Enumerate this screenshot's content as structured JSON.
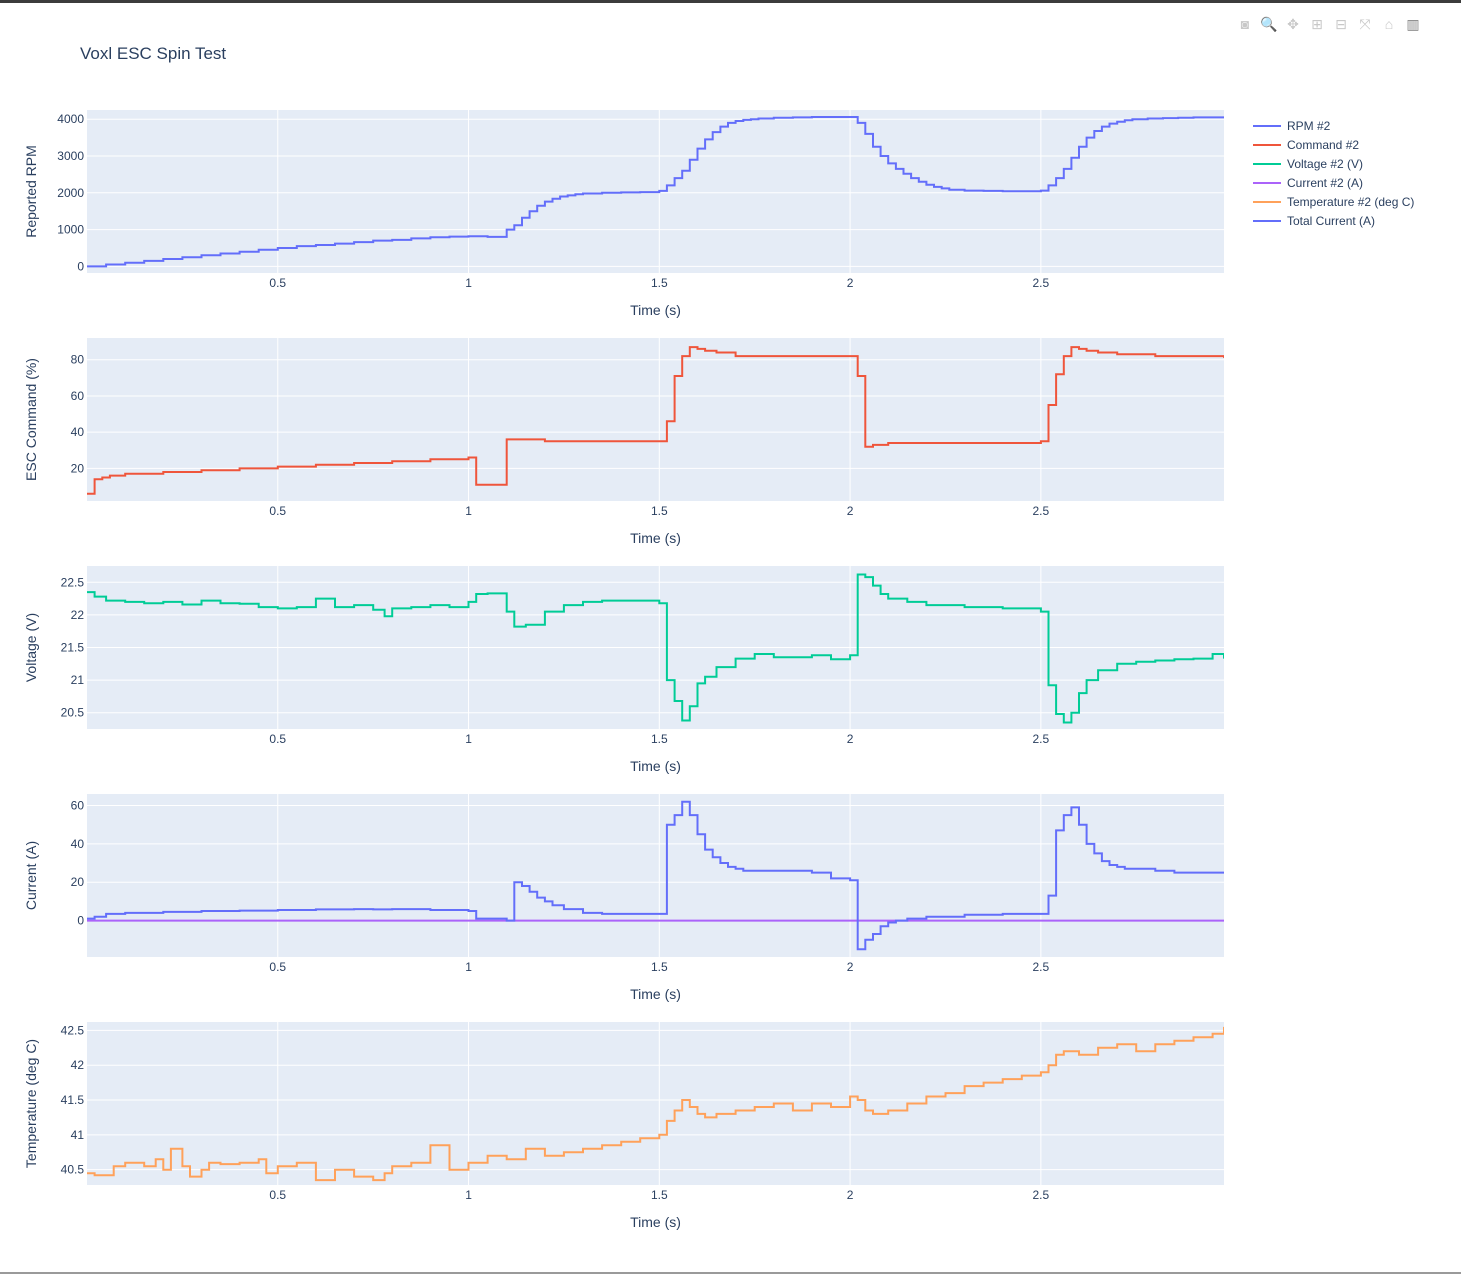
{
  "title": "Voxl ESC Spin Test",
  "modebar": [
    {
      "name": "camera-icon",
      "glyph": "◙"
    },
    {
      "name": "zoom-icon",
      "glyph": "🔍"
    },
    {
      "name": "pan-icon",
      "glyph": "✥"
    },
    {
      "name": "zoom-in-icon",
      "glyph": "⊞"
    },
    {
      "name": "zoom-out-icon",
      "glyph": "⊟"
    },
    {
      "name": "autoscale-icon",
      "glyph": "⤧"
    },
    {
      "name": "home-icon",
      "glyph": "⌂"
    },
    {
      "name": "plotly-logo-icon",
      "glyph": "▥"
    }
  ],
  "colors": {
    "plot_bg": "#e5ecf6",
    "grid": "#ffffff",
    "rpm": "#636efa",
    "command": "#EF553B",
    "voltage": "#00cc96",
    "current": "#ab63fa",
    "temperature": "#FFA15A",
    "total_current": "#636efa"
  },
  "legend": [
    {
      "label": "RPM #2",
      "color": "#636efa"
    },
    {
      "label": "Command #2",
      "color": "#EF553B"
    },
    {
      "label": "Voltage #2 (V)",
      "color": "#00cc96"
    },
    {
      "label": "Current #2 (A)",
      "color": "#ab63fa"
    },
    {
      "label": "Temperature #2 (deg C)",
      "color": "#FFA15A"
    },
    {
      "label": "Total Current (A)",
      "color": "#636efa"
    }
  ],
  "chart_data": [
    {
      "type": "line",
      "line_shape": "step",
      "xlabel": "Time (s)",
      "ylabel": "Reported RPM",
      "xlim": [
        0.0,
        2.98
      ],
      "ylim": [
        -180,
        4250
      ],
      "xticks": [
        0.5,
        1,
        1.5,
        2,
        2.5
      ],
      "xtick_labels": [
        "0.5",
        "1",
        "1.5",
        "2",
        "2.5"
      ],
      "yticks": [
        0,
        1000,
        2000,
        3000,
        4000
      ],
      "ytick_labels": [
        "0",
        "1000",
        "2000",
        "3000",
        "4000"
      ],
      "series": [
        {
          "name": "RPM #2",
          "color": "#636efa",
          "x": [
            0.0,
            0.05,
            0.1,
            0.15,
            0.2,
            0.25,
            0.3,
            0.35,
            0.4,
            0.45,
            0.5,
            0.55,
            0.6,
            0.65,
            0.7,
            0.75,
            0.8,
            0.85,
            0.9,
            0.95,
            1.0,
            1.05,
            1.1,
            1.12,
            1.14,
            1.16,
            1.18,
            1.2,
            1.22,
            1.24,
            1.26,
            1.28,
            1.3,
            1.35,
            1.4,
            1.45,
            1.5,
            1.52,
            1.54,
            1.56,
            1.58,
            1.6,
            1.62,
            1.64,
            1.66,
            1.68,
            1.7,
            1.72,
            1.74,
            1.76,
            1.8,
            1.85,
            1.9,
            1.95,
            2.0,
            2.02,
            2.04,
            2.06,
            2.08,
            2.1,
            2.12,
            2.14,
            2.16,
            2.18,
            2.2,
            2.22,
            2.24,
            2.26,
            2.3,
            2.35,
            2.4,
            2.45,
            2.5,
            2.52,
            2.54,
            2.56,
            2.58,
            2.6,
            2.62,
            2.64,
            2.66,
            2.68,
            2.7,
            2.72,
            2.74,
            2.78,
            2.82,
            2.86,
            2.9,
            2.95,
            2.98
          ],
          "y": [
            0,
            50,
            100,
            150,
            200,
            250,
            300,
            350,
            400,
            450,
            500,
            550,
            580,
            620,
            660,
            700,
            720,
            760,
            790,
            810,
            820,
            800,
            1000,
            1120,
            1320,
            1500,
            1650,
            1760,
            1840,
            1900,
            1930,
            1960,
            1980,
            2000,
            2010,
            2020,
            2050,
            2200,
            2400,
            2600,
            2900,
            3200,
            3450,
            3650,
            3800,
            3900,
            3950,
            3980,
            4000,
            4020,
            4040,
            4050,
            4060,
            4060,
            4060,
            3900,
            3600,
            3250,
            3000,
            2800,
            2650,
            2520,
            2400,
            2300,
            2220,
            2160,
            2120,
            2080,
            2060,
            2050,
            2040,
            2040,
            2060,
            2200,
            2400,
            2650,
            2950,
            3250,
            3500,
            3680,
            3800,
            3880,
            3930,
            3970,
            4000,
            4020,
            4030,
            4040,
            4050,
            4050,
            4050
          ]
        }
      ]
    },
    {
      "type": "line",
      "line_shape": "step",
      "xlabel": "Time (s)",
      "ylabel": "ESC Command (%)",
      "xlim": [
        0.0,
        2.98
      ],
      "ylim": [
        2,
        92
      ],
      "xticks": [
        0.5,
        1,
        1.5,
        2,
        2.5
      ],
      "xtick_labels": [
        "0.5",
        "1",
        "1.5",
        "2",
        "2.5"
      ],
      "yticks": [
        20,
        40,
        60,
        80
      ],
      "ytick_labels": [
        "20",
        "40",
        "60",
        "80"
      ],
      "series": [
        {
          "name": "Command #2",
          "color": "#EF553B",
          "x": [
            0.0,
            0.02,
            0.04,
            0.06,
            0.1,
            0.2,
            0.3,
            0.4,
            0.5,
            0.6,
            0.7,
            0.8,
            0.9,
            1.0,
            1.02,
            1.1,
            1.2,
            1.5,
            1.52,
            1.54,
            1.56,
            1.58,
            1.6,
            1.62,
            1.65,
            1.7,
            1.8,
            1.9,
            2.0,
            2.02,
            2.04,
            2.06,
            2.1,
            2.3,
            2.5,
            2.52,
            2.54,
            2.56,
            2.58,
            2.6,
            2.62,
            2.65,
            2.7,
            2.8,
            2.9,
            2.98
          ],
          "y": [
            6,
            14,
            15,
            16,
            17,
            18,
            19,
            20,
            21,
            22,
            23,
            24,
            25,
            26,
            11,
            36,
            35,
            35,
            46,
            71,
            82,
            87,
            86,
            85,
            84,
            82,
            82,
            82,
            82,
            71,
            32,
            33,
            34,
            34,
            35,
            55,
            72,
            82,
            87,
            86,
            85,
            84,
            83,
            82,
            82,
            81
          ]
        }
      ]
    },
    {
      "type": "line",
      "line_shape": "step",
      "xlabel": "Time (s)",
      "ylabel": "Voltage (V)",
      "xlim": [
        0.0,
        2.98
      ],
      "ylim": [
        20.25,
        22.75
      ],
      "xticks": [
        0.5,
        1,
        1.5,
        2,
        2.5
      ],
      "xtick_labels": [
        "0.5",
        "1",
        "1.5",
        "2",
        "2.5"
      ],
      "yticks": [
        20.5,
        21,
        21.5,
        22,
        22.5
      ],
      "ytick_labels": [
        "20.5",
        "21",
        "21.5",
        "22",
        "22.5"
      ],
      "series": [
        {
          "name": "Voltage #2 (V)",
          "color": "#00cc96",
          "x": [
            0.0,
            0.02,
            0.05,
            0.1,
            0.15,
            0.2,
            0.25,
            0.3,
            0.35,
            0.4,
            0.45,
            0.5,
            0.55,
            0.6,
            0.65,
            0.7,
            0.75,
            0.78,
            0.8,
            0.85,
            0.9,
            0.95,
            1.0,
            1.02,
            1.05,
            1.08,
            1.1,
            1.12,
            1.15,
            1.2,
            1.25,
            1.3,
            1.35,
            1.5,
            1.52,
            1.54,
            1.56,
            1.58,
            1.6,
            1.62,
            1.65,
            1.7,
            1.75,
            1.8,
            1.85,
            1.9,
            1.95,
            2.0,
            2.02,
            2.04,
            2.06,
            2.08,
            2.1,
            2.15,
            2.2,
            2.3,
            2.4,
            2.5,
            2.52,
            2.54,
            2.56,
            2.58,
            2.6,
            2.62,
            2.65,
            2.7,
            2.75,
            2.8,
            2.85,
            2.9,
            2.95,
            2.98
          ],
          "y": [
            22.35,
            22.28,
            22.22,
            22.2,
            22.18,
            22.2,
            22.16,
            22.22,
            22.18,
            22.17,
            22.12,
            22.1,
            22.12,
            22.25,
            22.12,
            22.15,
            22.08,
            21.98,
            22.1,
            22.12,
            22.15,
            22.12,
            22.2,
            22.32,
            22.33,
            22.33,
            22.05,
            21.82,
            21.85,
            22.05,
            22.15,
            22.2,
            22.22,
            22.18,
            21.0,
            20.68,
            20.38,
            20.6,
            20.95,
            21.05,
            21.2,
            21.33,
            21.4,
            21.35,
            21.35,
            21.38,
            21.32,
            21.38,
            22.62,
            22.58,
            22.45,
            22.32,
            22.25,
            22.2,
            22.15,
            22.12,
            22.1,
            22.05,
            20.92,
            20.48,
            20.35,
            20.5,
            20.8,
            21.0,
            21.15,
            21.25,
            21.28,
            21.3,
            21.32,
            21.33,
            21.4,
            21.33
          ]
        }
      ]
    },
    {
      "type": "line",
      "line_shape": "step",
      "xlabel": "Time (s)",
      "ylabel": "Current (A)",
      "xlim": [
        0.0,
        2.98
      ],
      "ylim": [
        -19,
        66
      ],
      "xticks": [
        0.5,
        1,
        1.5,
        2,
        2.5
      ],
      "xtick_labels": [
        "0.5",
        "1",
        "1.5",
        "2",
        "2.5"
      ],
      "yticks": [
        0,
        20,
        40,
        60
      ],
      "ytick_labels": [
        "0",
        "20",
        "40",
        "60"
      ],
      "series": [
        {
          "name": "Current #2 (A)",
          "color": "#ab63fa",
          "x": [
            0.0,
            2.98
          ],
          "y": [
            0,
            0
          ]
        },
        {
          "name": "Total Current (A)",
          "color": "#636efa",
          "x": [
            0.0,
            0.02,
            0.05,
            0.1,
            0.2,
            0.3,
            0.4,
            0.5,
            0.6,
            0.7,
            0.75,
            0.8,
            0.9,
            1.0,
            1.02,
            1.1,
            1.12,
            1.14,
            1.16,
            1.18,
            1.2,
            1.22,
            1.25,
            1.3,
            1.35,
            1.4,
            1.5,
            1.52,
            1.54,
            1.56,
            1.58,
            1.6,
            1.62,
            1.64,
            1.66,
            1.68,
            1.7,
            1.72,
            1.75,
            1.8,
            1.85,
            1.9,
            1.95,
            2.0,
            2.02,
            2.04,
            2.06,
            2.08,
            2.1,
            2.12,
            2.15,
            2.2,
            2.3,
            2.4,
            2.5,
            2.52,
            2.54,
            2.56,
            2.58,
            2.6,
            2.62,
            2.64,
            2.66,
            2.68,
            2.7,
            2.72,
            2.75,
            2.8,
            2.85,
            2.9,
            2.95,
            2.98
          ],
          "y": [
            1,
            2,
            3.5,
            4,
            4.5,
            5,
            5.2,
            5.5,
            5.8,
            6,
            5.8,
            6,
            5.5,
            5,
            1,
            0,
            20,
            18,
            15,
            12,
            10,
            8,
            6,
            4,
            3.5,
            3.5,
            3.5,
            50,
            55,
            62,
            55,
            45,
            37,
            33,
            30,
            28,
            27,
            26,
            26,
            26,
            26,
            25,
            22,
            21,
            -15,
            -10,
            -7,
            -3,
            -1,
            0,
            1,
            2,
            3,
            3.5,
            3.5,
            13,
            47,
            55,
            59,
            50,
            40,
            35,
            31,
            29,
            28,
            27,
            27,
            26,
            25,
            25,
            25,
            25
          ]
        }
      ]
    },
    {
      "type": "line",
      "line_shape": "step",
      "xlabel": "Time (s)",
      "ylabel": "Temperature (deg C)",
      "xlim": [
        0.0,
        2.98
      ],
      "ylim": [
        40.28,
        42.62
      ],
      "xticks": [
        0.5,
        1,
        1.5,
        2,
        2.5
      ],
      "xtick_labels": [
        "0.5",
        "1",
        "1.5",
        "2",
        "2.5"
      ],
      "yticks": [
        40.5,
        41,
        41.5,
        42,
        42.5
      ],
      "ytick_labels": [
        "40.5",
        "41",
        "41.5",
        "42",
        "42.5"
      ],
      "series": [
        {
          "name": "Temperature #2 (deg C)",
          "color": "#FFA15A",
          "x": [
            0.0,
            0.02,
            0.07,
            0.1,
            0.15,
            0.18,
            0.2,
            0.22,
            0.25,
            0.27,
            0.3,
            0.32,
            0.35,
            0.4,
            0.45,
            0.47,
            0.5,
            0.55,
            0.6,
            0.65,
            0.7,
            0.75,
            0.78,
            0.8,
            0.85,
            0.9,
            0.95,
            1.0,
            1.05,
            1.1,
            1.15,
            1.2,
            1.25,
            1.3,
            1.35,
            1.4,
            1.45,
            1.5,
            1.52,
            1.54,
            1.56,
            1.58,
            1.6,
            1.62,
            1.65,
            1.7,
            1.75,
            1.8,
            1.85,
            1.9,
            1.95,
            2.0,
            2.02,
            2.04,
            2.06,
            2.08,
            2.1,
            2.15,
            2.2,
            2.25,
            2.3,
            2.35,
            2.4,
            2.45,
            2.5,
            2.52,
            2.54,
            2.56,
            2.6,
            2.65,
            2.7,
            2.75,
            2.8,
            2.85,
            2.9,
            2.95,
            2.98
          ],
          "y": [
            40.45,
            40.42,
            40.55,
            40.6,
            40.55,
            40.65,
            40.5,
            40.8,
            40.55,
            40.4,
            40.5,
            40.6,
            40.58,
            40.6,
            40.65,
            40.45,
            40.55,
            40.6,
            40.35,
            40.5,
            40.4,
            40.35,
            40.45,
            40.55,
            40.6,
            40.85,
            40.5,
            40.6,
            40.7,
            40.65,
            40.8,
            40.7,
            40.75,
            40.8,
            40.85,
            40.9,
            40.95,
            41.0,
            41.2,
            41.35,
            41.5,
            41.4,
            41.3,
            41.25,
            41.3,
            41.35,
            41.4,
            41.45,
            41.35,
            41.45,
            41.4,
            41.55,
            41.5,
            41.35,
            41.3,
            41.3,
            41.35,
            41.45,
            41.55,
            41.6,
            41.7,
            41.75,
            41.8,
            41.85,
            41.9,
            42.0,
            42.15,
            42.2,
            42.15,
            42.25,
            42.3,
            42.2,
            42.3,
            42.35,
            42.4,
            42.45,
            42.55
          ]
        }
      ]
    }
  ]
}
